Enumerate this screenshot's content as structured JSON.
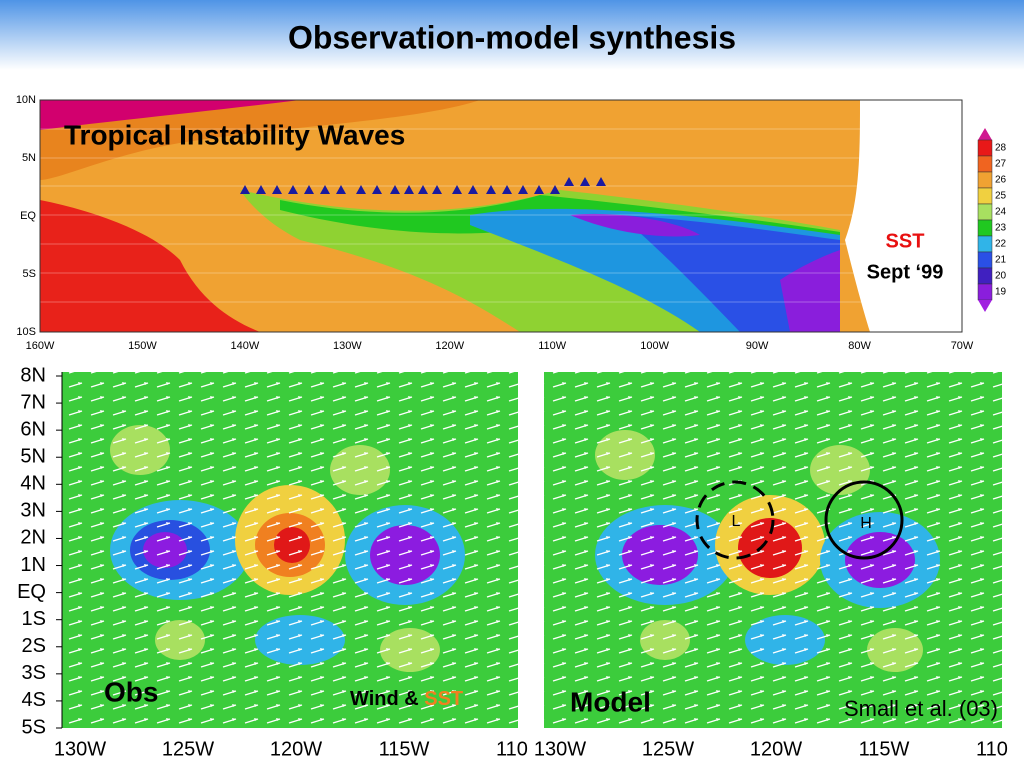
{
  "header": {
    "title": "Observation-model synthesis"
  },
  "top_map": {
    "title": "Tropical Instability Waves",
    "x_labels": [
      "160W",
      "150W",
      "140W",
      "130W",
      "120W",
      "110W",
      "100W",
      "90W",
      "80W",
      "70W"
    ],
    "y_labels": [
      "10N",
      "5N",
      "EQ",
      "5S",
      "10S"
    ],
    "colorbar": [
      28,
      27,
      26,
      25,
      24,
      23,
      22,
      21,
      20,
      19
    ],
    "variable": "SST",
    "date": "Sept ‘99"
  },
  "bottom": {
    "y_labels": [
      "8N",
      "7N",
      "6N",
      "5N",
      "4N",
      "3N",
      "2N",
      "1N",
      "EQ",
      "1S",
      "2S",
      "3S",
      "4S",
      "5S"
    ],
    "panels": [
      {
        "label": "Obs",
        "x_labels": [
          "130W",
          "125W",
          "120W",
          "115W",
          "110"
        ],
        "legend": "Wind & ",
        "legend_variable": "SST"
      },
      {
        "label": "Model",
        "x_labels": [
          "130W",
          "125W",
          "120W",
          "115W",
          "110"
        ],
        "citation": "Small et al. (03)",
        "low": "L",
        "high": "H"
      }
    ]
  }
}
